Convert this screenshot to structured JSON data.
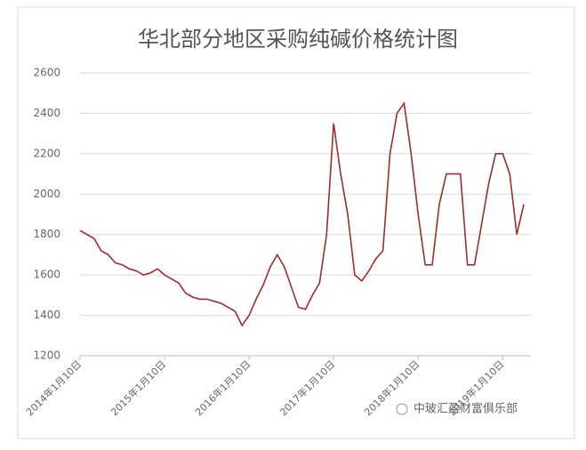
{
  "chart_data": {
    "type": "line",
    "title": "华北部分地区采购纯碱价格统计图",
    "series": [
      {
        "color": "#a52a2a",
        "values": [
          1820,
          1800,
          1780,
          1720,
          1700,
          1660,
          1650,
          1630,
          1620,
          1600,
          1610,
          1630,
          1600,
          1580,
          1560,
          1510,
          1490,
          1480,
          1480,
          1470,
          1460,
          1440,
          1420,
          1350,
          1400,
          1480,
          1550,
          1640,
          1700,
          1640,
          1540,
          1440,
          1430,
          1500,
          1560,
          1800,
          2350,
          2100,
          1900,
          1600,
          1570,
          1620,
          1680,
          1720,
          2200,
          2400,
          2450,
          2200,
          1900,
          1650,
          1650,
          1950,
          2100,
          2100,
          2100,
          1650,
          1650,
          1850,
          2050,
          2200,
          2200,
          2100,
          1800,
          1950
        ]
      }
    ],
    "xlim": [
      0,
      64
    ],
    "xticks": [
      {
        "value": 0,
        "label": "2014年1月10日"
      },
      {
        "value": 12,
        "label": "2015年1月10日"
      },
      {
        "value": 24,
        "label": "2016年1月10日"
      },
      {
        "value": 36,
        "label": "2017年1月10日"
      },
      {
        "value": 48,
        "label": "2018年1月10日"
      },
      {
        "value": 60,
        "label": "2019年1月10日"
      }
    ],
    "ylim": [
      1200,
      2600
    ],
    "yticks": [
      1200,
      1400,
      1600,
      1800,
      2000,
      2200,
      2400,
      2600
    ],
    "grid": true,
    "watermark": "中玻汇盈财富俱乐部"
  }
}
